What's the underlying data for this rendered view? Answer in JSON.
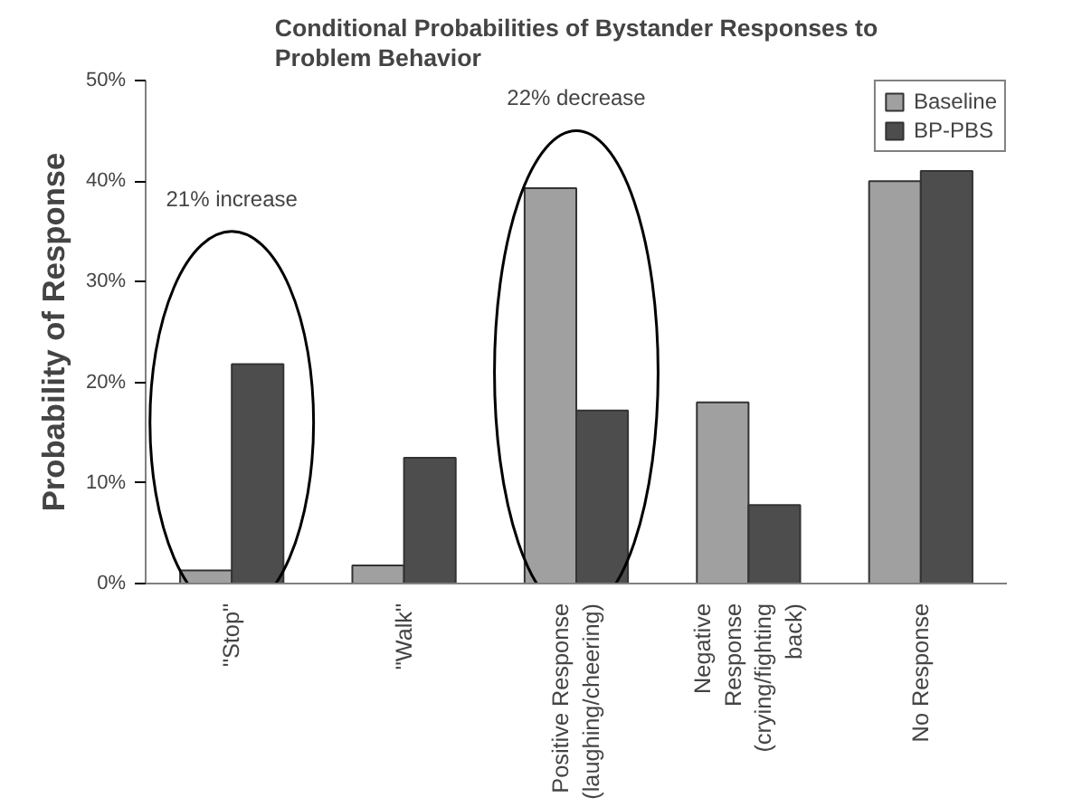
{
  "chart_data": {
    "type": "bar",
    "title": "Conditional Probabilities of Bystander Responses to\nProblem Behavior",
    "ylabel": "Probability of Response",
    "categories": [
      "\"Stop\"",
      "\"Walk\"",
      "Positive Response\n(laughing/cheering)",
      "Negative\nResponse\n(crying/fighting\nback)",
      "No Response"
    ],
    "series": [
      {
        "name": "Baseline",
        "color": "#a0a0a0",
        "values": [
          1.3,
          1.8,
          39.3,
          18,
          40
        ]
      },
      {
        "name": "BP-PBS",
        "color": "#4d4d4d",
        "values": [
          21.8,
          12.5,
          17.2,
          7.8,
          41
        ]
      }
    ],
    "ylim": [
      0,
      50
    ],
    "yticks": [
      {
        "value": 0,
        "label": "0%"
      },
      {
        "value": 10,
        "label": "10%"
      },
      {
        "value": 20,
        "label": "20%"
      },
      {
        "value": 30,
        "label": "30%"
      },
      {
        "value": 40,
        "label": "40%"
      },
      {
        "value": 50,
        "label": "50%"
      }
    ],
    "annotations": [
      "21% increase",
      "22% decrease"
    ],
    "legend": "top right",
    "grid": false
  }
}
